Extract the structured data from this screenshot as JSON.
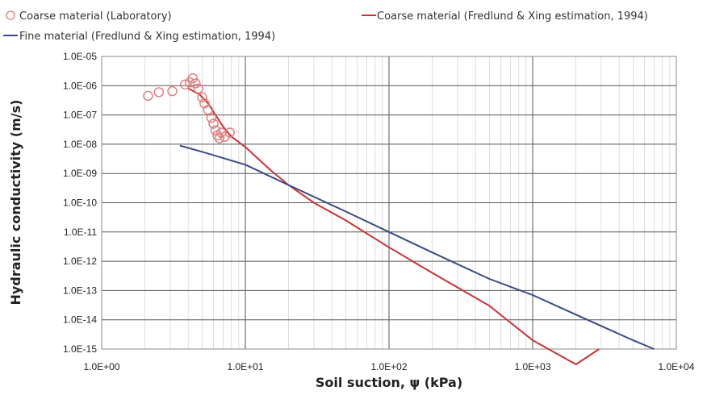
{
  "chart_data": {
    "type": "scatter",
    "title": "",
    "xlabel": "Soil suction, ψ (kPa)",
    "ylabel": "Hydraulic conductivity (m/s)",
    "x_scale": "log",
    "y_scale": "log",
    "xlim": [
      1,
      10000
    ],
    "ylim": [
      1e-15,
      1e-05
    ],
    "grid": true,
    "legend_position": "top",
    "x_ticks": [
      {
        "value": 1,
        "label": "1.0E+00"
      },
      {
        "value": 10,
        "label": "1.0E+01"
      },
      {
        "value": 100,
        "label": "1.0E+02"
      },
      {
        "value": 1000,
        "label": "1.0E+03"
      },
      {
        "value": 10000,
        "label": "1.0E+04"
      }
    ],
    "y_ticks": [
      {
        "value": 1e-05,
        "label": "1.0E-05"
      },
      {
        "value": 1e-06,
        "label": "1.0E-06"
      },
      {
        "value": 1e-07,
        "label": "1.0E-07"
      },
      {
        "value": 1e-08,
        "label": "1.0E-08"
      },
      {
        "value": 1e-09,
        "label": "1.0E-09"
      },
      {
        "value": 1e-10,
        "label": "1.0E-10"
      },
      {
        "value": 1e-11,
        "label": "1.0E-11"
      },
      {
        "value": 1e-12,
        "label": "1.0E-12"
      },
      {
        "value": 1e-13,
        "label": "1.0E-13"
      },
      {
        "value": 1e-14,
        "label": "1.0E-14"
      },
      {
        "value": 1e-15,
        "label": "1.0E-15"
      }
    ],
    "series": [
      {
        "name": "Coarse material (Laboratory)",
        "kind": "markers",
        "color": "#e07a7a",
        "points": [
          [
            2.1,
            4.5e-07
          ],
          [
            2.5,
            6e-07
          ],
          [
            3.1,
            6.5e-07
          ],
          [
            3.8,
            1.1e-06
          ],
          [
            4.1,
            1.3e-06
          ],
          [
            4.3,
            1.8e-06
          ],
          [
            4.5,
            1.2e-06
          ],
          [
            4.7,
            8e-07
          ],
          [
            5.0,
            4e-07
          ],
          [
            5.2,
            2.5e-07
          ],
          [
            5.5,
            1.5e-07
          ],
          [
            5.8,
            8e-08
          ],
          [
            6.0,
            5e-08
          ],
          [
            6.2,
            3e-08
          ],
          [
            6.4,
            2e-08
          ],
          [
            6.6,
            1.6e-08
          ],
          [
            6.8,
            2.5e-08
          ],
          [
            7.2,
            1.8e-08
          ],
          [
            7.8,
            2.5e-08
          ]
        ]
      },
      {
        "name": "Coarse material (Fredlund & Xing estimation, 1994)",
        "kind": "line",
        "color": "#cc3333",
        "points": [
          [
            4.0,
            8e-07
          ],
          [
            4.8,
            5e-07
          ],
          [
            5.5,
            2.5e-07
          ],
          [
            6.2,
            1e-07
          ],
          [
            7.0,
            4e-08
          ],
          [
            8.0,
            1.8e-08
          ],
          [
            10,
            8e-09
          ],
          [
            15,
            1.3e-09
          ],
          [
            20,
            4e-10
          ],
          [
            30,
            1e-10
          ],
          [
            50,
            2.5e-11
          ],
          [
            100,
            3e-12
          ],
          [
            200,
            4e-13
          ],
          [
            500,
            3e-14
          ],
          [
            1000,
            2e-15
          ],
          [
            2000,
            3e-16
          ],
          [
            2900,
            1e-15
          ]
        ]
      },
      {
        "name": "Fine material (Fredlund & Xing estimation, 1994)",
        "kind": "line",
        "color": "#3a4a85",
        "points": [
          [
            3.5,
            9e-09
          ],
          [
            5,
            5.5e-09
          ],
          [
            10,
            2e-09
          ],
          [
            20,
            4e-10
          ],
          [
            50,
            5e-11
          ],
          [
            100,
            1e-11
          ],
          [
            200,
            2e-12
          ],
          [
            500,
            2.5e-13
          ],
          [
            1000,
            7e-14
          ],
          [
            2000,
            1.5e-14
          ],
          [
            5000,
            2e-15
          ],
          [
            7000,
            1e-15
          ]
        ]
      }
    ]
  }
}
